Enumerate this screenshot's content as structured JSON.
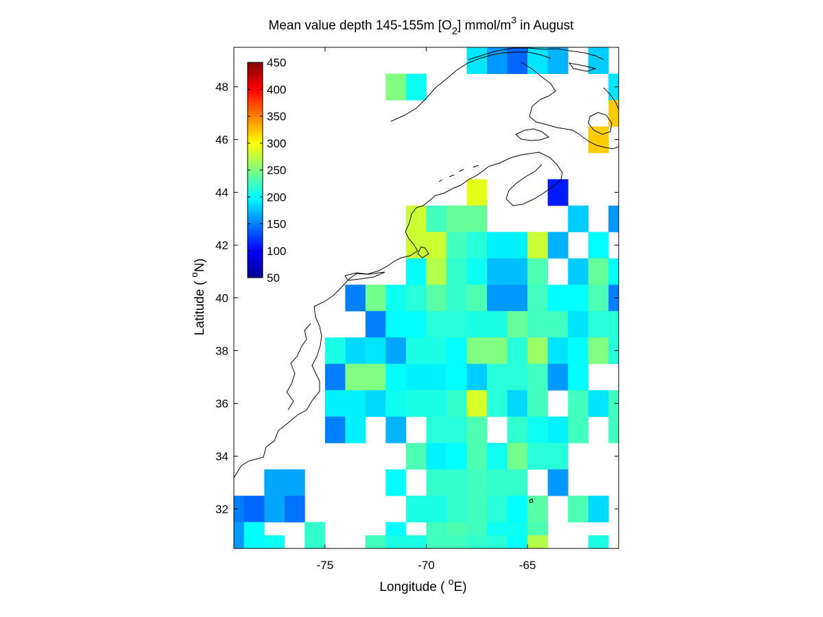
{
  "figure": {
    "title": {
      "prefix": "Mean value depth 145-155m [O",
      "sub": "2",
      "middle": "] mmol/m",
      "sup": "3",
      "suffix": " in August"
    },
    "xlabel": {
      "prefix": "Longitude ( ",
      "sup": "o",
      "suffix": "E)"
    },
    "ylabel": {
      "prefix": "Latitude ( ",
      "sup": "o",
      "suffix": "N)"
    }
  },
  "chart_data": {
    "type": "heatmap",
    "variable": "O2",
    "units": "mmol/m3",
    "depth": "145-155m",
    "month": "August",
    "xlim": [
      -79.5,
      -60.5
    ],
    "ylim": [
      30.5,
      49.5
    ],
    "x_ticks": [
      -75,
      -70,
      -65
    ],
    "x_tick_labels": [
      "-75",
      "-70",
      "-65"
    ],
    "y_ticks": [
      32,
      34,
      36,
      38,
      40,
      42,
      44,
      46,
      48
    ],
    "y_tick_labels": [
      "32",
      "34",
      "36",
      "38",
      "40",
      "42",
      "44",
      "46",
      "48"
    ],
    "colorbar": {
      "colormap": "jet",
      "range": [
        50,
        450
      ],
      "ticks": [
        50,
        100,
        150,
        200,
        250,
        300,
        350,
        400,
        450
      ],
      "tick_labels": [
        "50",
        "100",
        "150",
        "200",
        "250",
        "300",
        "350",
        "400",
        "450"
      ],
      "placement": "inside-top-left"
    },
    "cell_size_deg": 1,
    "cells": [
      {
        "lon": -67.5,
        "lat": 49,
        "v": 190
      },
      {
        "lon": -66.5,
        "lat": 49,
        "v": 160
      },
      {
        "lon": -65.5,
        "lat": 49,
        "v": 140
      },
      {
        "lon": -64.5,
        "lat": 49,
        "v": 190
      },
      {
        "lon": -63.5,
        "lat": 49,
        "v": 170
      },
      {
        "lon": -61.5,
        "lat": 49,
        "v": 180
      },
      {
        "lon": -71.5,
        "lat": 48,
        "v": 250
      },
      {
        "lon": -70.5,
        "lat": 48,
        "v": 205
      },
      {
        "lon": -60.5,
        "lat": 48,
        "v": 190
      },
      {
        "lon": -60.5,
        "lat": 47,
        "v": 320
      },
      {
        "lon": -61.5,
        "lat": 46,
        "v": 320
      },
      {
        "lon": -67.5,
        "lat": 44,
        "v": 290
      },
      {
        "lon": -63.5,
        "lat": 44,
        "v": 110
      },
      {
        "lon": -70.5,
        "lat": 43,
        "v": 280
      },
      {
        "lon": -69.5,
        "lat": 43,
        "v": 225
      },
      {
        "lon": -68.5,
        "lat": 43,
        "v": 240
      },
      {
        "lon": -67.5,
        "lat": 43,
        "v": 240
      },
      {
        "lon": -62.5,
        "lat": 43,
        "v": 180
      },
      {
        "lon": -60.5,
        "lat": 43,
        "v": 160
      },
      {
        "lon": -70.5,
        "lat": 42,
        "v": 280
      },
      {
        "lon": -69.5,
        "lat": 42,
        "v": 280
      },
      {
        "lon": -68.5,
        "lat": 42,
        "v": 225
      },
      {
        "lon": -67.5,
        "lat": 42,
        "v": 215
      },
      {
        "lon": -66.5,
        "lat": 42,
        "v": 195
      },
      {
        "lon": -65.5,
        "lat": 42,
        "v": 195
      },
      {
        "lon": -64.5,
        "lat": 42,
        "v": 280
      },
      {
        "lon": -63.5,
        "lat": 42,
        "v": 170
      },
      {
        "lon": -61.5,
        "lat": 42,
        "v": 200
      },
      {
        "lon": -70.5,
        "lat": 41,
        "v": 200
      },
      {
        "lon": -69.5,
        "lat": 41,
        "v": 270
      },
      {
        "lon": -68.5,
        "lat": 41,
        "v": 220
      },
      {
        "lon": -67.5,
        "lat": 41,
        "v": 205
      },
      {
        "lon": -66.5,
        "lat": 41,
        "v": 175
      },
      {
        "lon": -65.5,
        "lat": 41,
        "v": 175
      },
      {
        "lon": -64.5,
        "lat": 41,
        "v": 230
      },
      {
        "lon": -62.5,
        "lat": 41,
        "v": 180
      },
      {
        "lon": -61.5,
        "lat": 41,
        "v": 240
      },
      {
        "lon": -60.5,
        "lat": 41,
        "v": 200
      },
      {
        "lon": -73.5,
        "lat": 40,
        "v": 150
      },
      {
        "lon": -72.5,
        "lat": 40,
        "v": 245
      },
      {
        "lon": -71.5,
        "lat": 40,
        "v": 205
      },
      {
        "lon": -70.5,
        "lat": 40,
        "v": 215
      },
      {
        "lon": -69.5,
        "lat": 40,
        "v": 235
      },
      {
        "lon": -68.5,
        "lat": 40,
        "v": 220
      },
      {
        "lon": -67.5,
        "lat": 40,
        "v": 230
      },
      {
        "lon": -66.5,
        "lat": 40,
        "v": 160
      },
      {
        "lon": -65.5,
        "lat": 40,
        "v": 160
      },
      {
        "lon": -64.5,
        "lat": 40,
        "v": 225
      },
      {
        "lon": -63.5,
        "lat": 40,
        "v": 200
      },
      {
        "lon": -62.5,
        "lat": 40,
        "v": 200
      },
      {
        "lon": -61.5,
        "lat": 40,
        "v": 230
      },
      {
        "lon": -60.5,
        "lat": 40,
        "v": 150
      },
      {
        "lon": -72.5,
        "lat": 39,
        "v": 150
      },
      {
        "lon": -71.5,
        "lat": 39,
        "v": 200
      },
      {
        "lon": -70.5,
        "lat": 39,
        "v": 200
      },
      {
        "lon": -69.5,
        "lat": 39,
        "v": 215
      },
      {
        "lon": -68.5,
        "lat": 39,
        "v": 215
      },
      {
        "lon": -67.5,
        "lat": 39,
        "v": 210
      },
      {
        "lon": -66.5,
        "lat": 39,
        "v": 210
      },
      {
        "lon": -65.5,
        "lat": 39,
        "v": 240
      },
      {
        "lon": -64.5,
        "lat": 39,
        "v": 225
      },
      {
        "lon": -63.5,
        "lat": 39,
        "v": 225
      },
      {
        "lon": -62.5,
        "lat": 39,
        "v": 190
      },
      {
        "lon": -61.5,
        "lat": 39,
        "v": 215
      },
      {
        "lon": -60.5,
        "lat": 39,
        "v": 215
      },
      {
        "lon": -74.5,
        "lat": 38,
        "v": 210
      },
      {
        "lon": -73.5,
        "lat": 38,
        "v": 185
      },
      {
        "lon": -72.5,
        "lat": 38,
        "v": 190
      },
      {
        "lon": -71.5,
        "lat": 38,
        "v": 165
      },
      {
        "lon": -70.5,
        "lat": 38,
        "v": 210
      },
      {
        "lon": -69.5,
        "lat": 38,
        "v": 210
      },
      {
        "lon": -68.5,
        "lat": 38,
        "v": 200
      },
      {
        "lon": -67.5,
        "lat": 38,
        "v": 250
      },
      {
        "lon": -66.5,
        "lat": 38,
        "v": 250
      },
      {
        "lon": -65.5,
        "lat": 38,
        "v": 215
      },
      {
        "lon": -64.5,
        "lat": 38,
        "v": 260
      },
      {
        "lon": -63.5,
        "lat": 38,
        "v": 190
      },
      {
        "lon": -62.5,
        "lat": 38,
        "v": 200
      },
      {
        "lon": -61.5,
        "lat": 38,
        "v": 250
      },
      {
        "lon": -60.5,
        "lat": 38,
        "v": 215
      },
      {
        "lon": -74.5,
        "lat": 37,
        "v": 150
      },
      {
        "lon": -73.5,
        "lat": 37,
        "v": 250
      },
      {
        "lon": -72.5,
        "lat": 37,
        "v": 250
      },
      {
        "lon": -71.5,
        "lat": 37,
        "v": 200
      },
      {
        "lon": -70.5,
        "lat": 37,
        "v": 195
      },
      {
        "lon": -69.5,
        "lat": 37,
        "v": 195
      },
      {
        "lon": -68.5,
        "lat": 37,
        "v": 200
      },
      {
        "lon": -67.5,
        "lat": 37,
        "v": 180
      },
      {
        "lon": -66.5,
        "lat": 37,
        "v": 215
      },
      {
        "lon": -65.5,
        "lat": 37,
        "v": 215
      },
      {
        "lon": -64.5,
        "lat": 37,
        "v": 225
      },
      {
        "lon": -63.5,
        "lat": 37,
        "v": 160
      },
      {
        "lon": -62.5,
        "lat": 37,
        "v": 200
      },
      {
        "lon": -74.5,
        "lat": 36,
        "v": 195
      },
      {
        "lon": -73.5,
        "lat": 36,
        "v": 195
      },
      {
        "lon": -72.5,
        "lat": 36,
        "v": 185
      },
      {
        "lon": -71.5,
        "lat": 36,
        "v": 205
      },
      {
        "lon": -70.5,
        "lat": 36,
        "v": 210
      },
      {
        "lon": -69.5,
        "lat": 36,
        "v": 210
      },
      {
        "lon": -68.5,
        "lat": 36,
        "v": 220
      },
      {
        "lon": -67.5,
        "lat": 36,
        "v": 285
      },
      {
        "lon": -66.5,
        "lat": 36,
        "v": 215
      },
      {
        "lon": -65.5,
        "lat": 36,
        "v": 185
      },
      {
        "lon": -64.5,
        "lat": 36,
        "v": 225
      },
      {
        "lon": -62.5,
        "lat": 36,
        "v": 225
      },
      {
        "lon": -61.5,
        "lat": 36,
        "v": 190
      },
      {
        "lon": -60.5,
        "lat": 36,
        "v": 225
      },
      {
        "lon": -74.5,
        "lat": 35,
        "v": 150
      },
      {
        "lon": -73.5,
        "lat": 35,
        "v": 195
      },
      {
        "lon": -71.5,
        "lat": 35,
        "v": 170
      },
      {
        "lon": -69.5,
        "lat": 35,
        "v": 215
      },
      {
        "lon": -68.5,
        "lat": 35,
        "v": 215
      },
      {
        "lon": -67.5,
        "lat": 35,
        "v": 230
      },
      {
        "lon": -65.5,
        "lat": 35,
        "v": 220
      },
      {
        "lon": -64.5,
        "lat": 35,
        "v": 205
      },
      {
        "lon": -63.5,
        "lat": 35,
        "v": 195
      },
      {
        "lon": -62.5,
        "lat": 35,
        "v": 225
      },
      {
        "lon": -60.5,
        "lat": 35,
        "v": 225
      },
      {
        "lon": -70.5,
        "lat": 34,
        "v": 230
      },
      {
        "lon": -69.5,
        "lat": 34,
        "v": 195
      },
      {
        "lon": -68.5,
        "lat": 34,
        "v": 200
      },
      {
        "lon": -67.5,
        "lat": 34,
        "v": 230
      },
      {
        "lon": -66.5,
        "lat": 34,
        "v": 205
      },
      {
        "lon": -65.5,
        "lat": 34,
        "v": 245
      },
      {
        "lon": -64.5,
        "lat": 34,
        "v": 215
      },
      {
        "lon": -63.5,
        "lat": 34,
        "v": 215
      },
      {
        "lon": -77.5,
        "lat": 33,
        "v": 165
      },
      {
        "lon": -76.5,
        "lat": 33,
        "v": 165
      },
      {
        "lon": -71.5,
        "lat": 33,
        "v": 200
      },
      {
        "lon": -69.5,
        "lat": 33,
        "v": 220
      },
      {
        "lon": -68.5,
        "lat": 33,
        "v": 220
      },
      {
        "lon": -67.5,
        "lat": 33,
        "v": 225
      },
      {
        "lon": -66.5,
        "lat": 33,
        "v": 220
      },
      {
        "lon": -65.5,
        "lat": 33,
        "v": 220
      },
      {
        "lon": -63.5,
        "lat": 33,
        "v": 160
      },
      {
        "lon": -79.5,
        "lat": 32,
        "v": 150
      },
      {
        "lon": -78.5,
        "lat": 32,
        "v": 140
      },
      {
        "lon": -77.5,
        "lat": 32,
        "v": 165
      },
      {
        "lon": -76.5,
        "lat": 32,
        "v": 145
      },
      {
        "lon": -70.5,
        "lat": 32,
        "v": 210
      },
      {
        "lon": -69.5,
        "lat": 32,
        "v": 210
      },
      {
        "lon": -68.5,
        "lat": 32,
        "v": 220
      },
      {
        "lon": -67.5,
        "lat": 32,
        "v": 225
      },
      {
        "lon": -66.5,
        "lat": 32,
        "v": 215
      },
      {
        "lon": -65.5,
        "lat": 32,
        "v": 200
      },
      {
        "lon": -64.5,
        "lat": 32,
        "v": 235
      },
      {
        "lon": -62.5,
        "lat": 32,
        "v": 230
      },
      {
        "lon": -61.5,
        "lat": 32,
        "v": 185
      },
      {
        "lon": -79.5,
        "lat": 31,
        "v": 160
      },
      {
        "lon": -78.5,
        "lat": 31,
        "v": 200
      },
      {
        "lon": -75.5,
        "lat": 31,
        "v": 220
      },
      {
        "lon": -71.5,
        "lat": 31,
        "v": 200
      },
      {
        "lon": -69.5,
        "lat": 31,
        "v": 225
      },
      {
        "lon": -68.5,
        "lat": 31,
        "v": 230
      },
      {
        "lon": -67.5,
        "lat": 31,
        "v": 225
      },
      {
        "lon": -66.5,
        "lat": 31,
        "v": 205
      },
      {
        "lon": -65.5,
        "lat": 31,
        "v": 205
      },
      {
        "lon": -64.5,
        "lat": 31,
        "v": 230
      },
      {
        "lon": -78.5,
        "lat": 30.5,
        "v": 200
      },
      {
        "lon": -77.5,
        "lat": 30.5,
        "v": 205
      },
      {
        "lon": -72.5,
        "lat": 30.5,
        "v": 225
      },
      {
        "lon": -71.5,
        "lat": 30.5,
        "v": 210
      },
      {
        "lon": -70.5,
        "lat": 30.5,
        "v": 210
      },
      {
        "lon": -69.5,
        "lat": 30.5,
        "v": 225
      },
      {
        "lon": -68.5,
        "lat": 30.5,
        "v": 225
      },
      {
        "lon": -67.5,
        "lat": 30.5,
        "v": 220
      },
      {
        "lon": -66.5,
        "lat": 30.5,
        "v": 215
      },
      {
        "lon": -65.5,
        "lat": 30.5,
        "v": 200
      },
      {
        "lon": -64.5,
        "lat": 30.5,
        "v": 270
      },
      {
        "lon": -61.5,
        "lat": 30.5,
        "v": 210
      }
    ]
  }
}
